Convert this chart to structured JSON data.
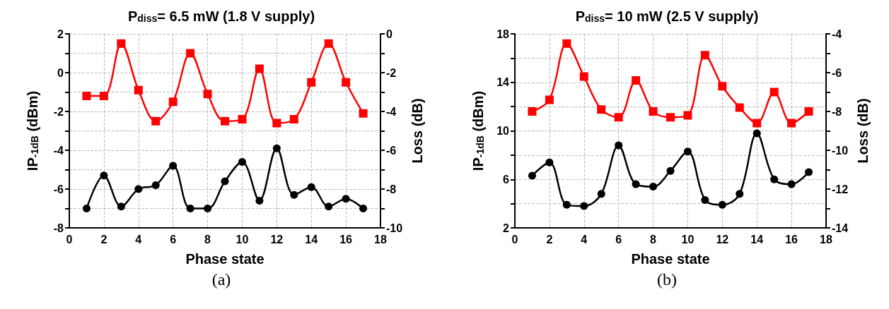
{
  "chart_data": [
    {
      "type": "line",
      "title": "P$_{diss}$= 6.5 mW (1.8 V supply)",
      "xlabel": "Phase state",
      "ylabel": "IP$_{-1dB}$ (dBm)",
      "y2label": "Loss (dB)",
      "annotations": [
        "(a)"
      ],
      "x": [
        1,
        2,
        3,
        4,
        5,
        6,
        7,
        8,
        9,
        10,
        11,
        12,
        13,
        14,
        15,
        16,
        17
      ],
      "series": [
        {
          "color": "#ff0000",
          "marker": "square",
          "axis": "y2",
          "values": [
            -3.2,
            -3.2,
            -0.5,
            -2.9,
            -4.5,
            -3.5,
            -1.0,
            -3.1,
            -4.5,
            -4.4,
            -1.8,
            -4.6,
            -4.4,
            -2.5,
            -0.5,
            -2.5,
            -4.1
          ]
        },
        {
          "color": "#000000",
          "marker": "circle",
          "values": [
            -7,
            -5.3,
            -6.9,
            -6,
            -5.8,
            -4.8,
            -7,
            -7,
            -5.6,
            -4.6,
            -6.6,
            -3.9,
            -6.3,
            -5.9,
            -6.9,
            -6.5,
            -7
          ]
        }
      ],
      "xlim": [
        0,
        18
      ],
      "xticks": [
        0,
        2,
        4,
        6,
        8,
        10,
        12,
        14,
        16,
        18
      ],
      "ylim": [
        -8,
        2
      ],
      "yticks": [
        -8,
        {
          "value": -7,
          "label": null
        },
        -6,
        {
          "value": -5,
          "label": null
        },
        -4,
        {
          "value": -3,
          "label": null
        },
        -2,
        {
          "value": -1,
          "label": null
        },
        0,
        {
          "value": 1,
          "label": null
        },
        2
      ],
      "y2lim": [
        -10,
        0
      ],
      "y2ticks": [
        -10,
        {
          "value": -9,
          "label": null
        },
        -8,
        {
          "value": -7,
          "label": null
        },
        -6,
        {
          "value": -5,
          "label": null
        },
        -4,
        {
          "value": -3,
          "label": null
        },
        -2,
        {
          "value": -1,
          "label": null
        },
        0
      ],
      "grid": true
    },
    {
      "type": "line",
      "title": "P$_{diss}$= 10 mW (2.5 V supply)",
      "xlabel": "Phase state",
      "ylabel": "IP$_{-1dB}$ (dBm)",
      "y2label": "Loss (dB)",
      "annotations": [
        "(b)"
      ],
      "x": [
        1,
        2,
        3,
        4,
        5,
        6,
        7,
        8,
        9,
        10,
        11,
        12,
        13,
        14,
        15,
        16,
        17
      ],
      "series": [
        {
          "color": "#ff0000",
          "marker": "square",
          "axis": "y2",
          "values": [
            -8.0,
            -7.4,
            -4.5,
            -6.2,
            -7.9,
            -8.3,
            -6.4,
            -8.0,
            -8.3,
            -8.2,
            -5.1,
            -6.7,
            -7.8,
            -8.6,
            -7.0,
            -8.6,
            -8.0
          ]
        },
        {
          "color": "#000000",
          "marker": "circle",
          "values": [
            6.3,
            7.4,
            3.9,
            3.8,
            4.8,
            8.8,
            5.6,
            5.4,
            6.7,
            8.3,
            4.3,
            3.9,
            4.8,
            9.8,
            6.0,
            5.6,
            6.6
          ]
        }
      ],
      "xlim": [
        0,
        18
      ],
      "xticks": [
        0,
        2,
        4,
        6,
        8,
        10,
        12,
        14,
        16,
        18
      ],
      "ylim": [
        2,
        18
      ],
      "yticks": [
        2,
        {
          "value": 4,
          "label": null
        },
        6,
        {
          "value": 8,
          "label": null
        },
        10,
        {
          "value": 12,
          "label": null
        },
        14,
        {
          "value": 16,
          "label": null
        },
        18
      ],
      "y2lim": [
        -14,
        -4
      ],
      "y2ticks": [
        -14,
        {
          "value": -13,
          "label": null
        },
        -12,
        {
          "value": -11,
          "label": null
        },
        -10,
        {
          "value": -9,
          "label": null
        },
        -8,
        {
          "value": -7,
          "label": null
        },
        -6,
        {
          "value": -5,
          "label": null
        },
        -4
      ],
      "grid": true
    }
  ]
}
